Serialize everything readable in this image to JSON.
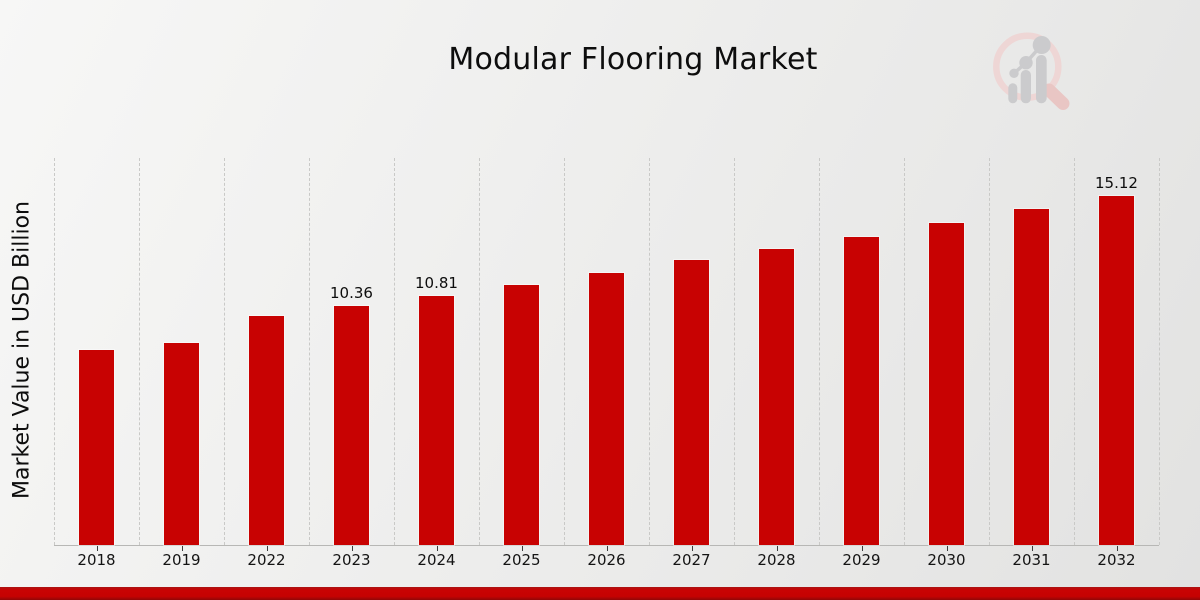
{
  "header": {
    "title": "Modular Flooring Market"
  },
  "y_axis": {
    "label": "Market Value in USD Billion"
  },
  "logo": {
    "icon": "magnifier-bar-chart-logo"
  },
  "chart_data": {
    "type": "bar",
    "title": "Modular Flooring Market",
    "xlabel": "",
    "ylabel": "Market Value in USD Billion",
    "categories": [
      "2018",
      "2019",
      "2022",
      "2023",
      "2024",
      "2025",
      "2026",
      "2027",
      "2028",
      "2029",
      "2030",
      "2031",
      "2032"
    ],
    "values": [
      8.45,
      8.76,
      9.93,
      10.36,
      10.81,
      11.27,
      11.79,
      12.35,
      12.83,
      13.35,
      13.96,
      14.56,
      15.12
    ],
    "value_labels": {
      "2023": "10.36",
      "2024": "10.81",
      "2032": "15.12"
    },
    "ylim": [
      0,
      16.77
    ],
    "grid": "vertical-dashed",
    "legend": "none",
    "bar_color": "#c80202"
  },
  "colors": {
    "bar": "#c80202",
    "footer_red": "#c60202",
    "gridline": "#c9c9c7",
    "axis_line": "#b7b7b5",
    "text": "#0d0d0d",
    "logo_pink": "#eed6d5",
    "logo_gray": "#cbcbcd"
  }
}
